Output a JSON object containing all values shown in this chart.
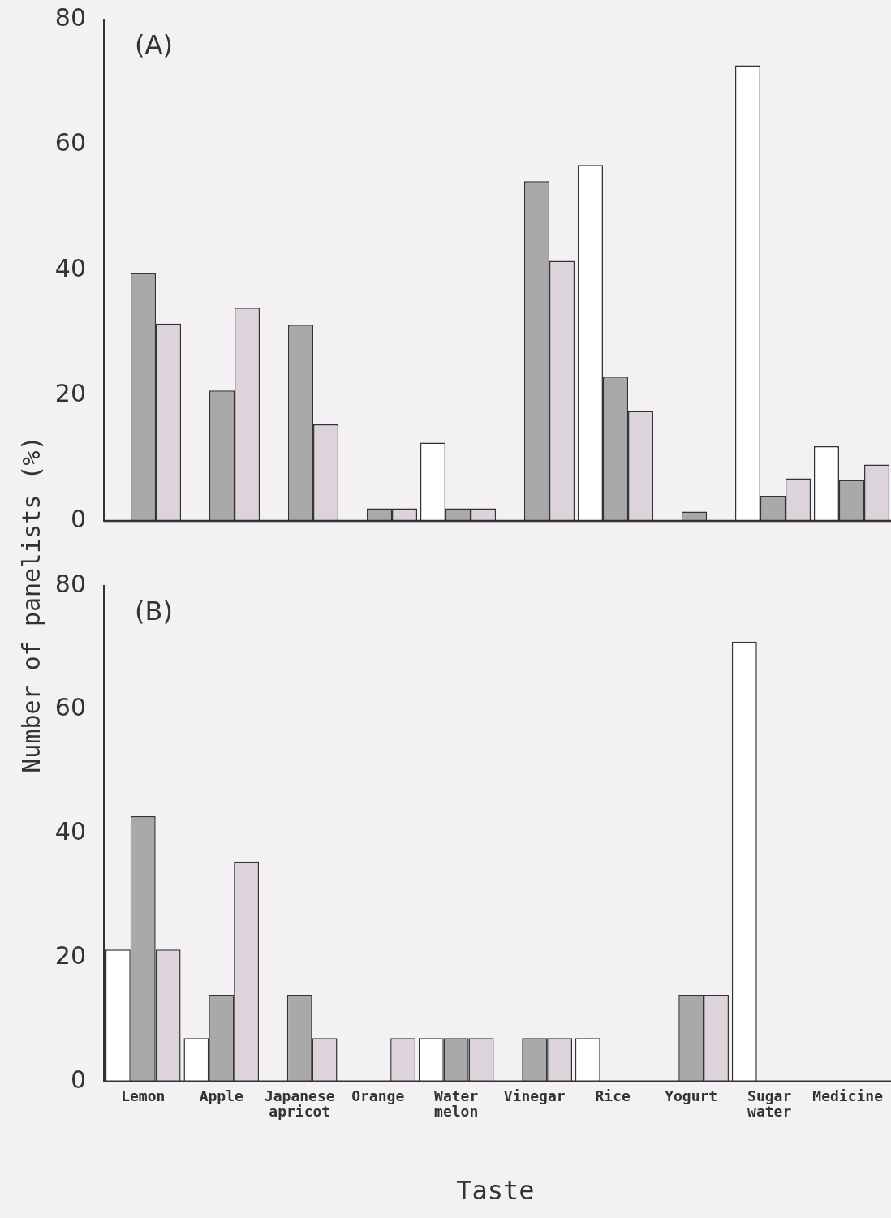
{
  "chart_data": [
    {
      "type": "bar",
      "title": "(A)",
      "ylabel": "Number of panelists (%)",
      "tick_labels": "y",
      "ylim": [
        0,
        80
      ],
      "yticks": [
        0,
        20,
        40,
        60,
        80
      ],
      "series": [
        {
          "color": "#ffffff",
          "values": [
            null,
            null,
            null,
            null,
            12.5,
            null,
            56.8,
            null,
            72.7,
            11.9
          ]
        },
        {
          "color": "#a9a9a9",
          "values": [
            39.5,
            20.8,
            31.3,
            2,
            2,
            54.2,
            23,
            1.5,
            4,
            6.5
          ]
        },
        {
          "color": "#ddd3da",
          "values": [
            31.5,
            34,
            15.4,
            2,
            2,
            41.5,
            17.5,
            null,
            6.8,
            9
          ]
        }
      ]
    },
    {
      "type": "bar",
      "title": "(B)",
      "xlabel": "Taste",
      "categories": [
        "Lemon",
        "Apple",
        "Japanese apricot",
        "Orange",
        "Water melon",
        "Vinegar",
        "Rice",
        "Yogurt",
        "Sugar water",
        "Medicine"
      ],
      "ylim": [
        0,
        80
      ],
      "yticks": [
        0,
        20,
        40,
        60,
        80
      ],
      "series": [
        {
          "color": "#ffffff",
          "values": [
            21.3,
            7,
            null,
            null,
            7,
            null,
            7,
            null,
            71,
            null
          ]
        },
        {
          "color": "#a9a9a9",
          "values": [
            42.8,
            14,
            14,
            null,
            7,
            7,
            null,
            14,
            null,
            null
          ]
        },
        {
          "color": "#ddd3da",
          "values": [
            21.3,
            35.5,
            7,
            7,
            7,
            7,
            null,
            14,
            null,
            null
          ]
        }
      ]
    }
  ]
}
